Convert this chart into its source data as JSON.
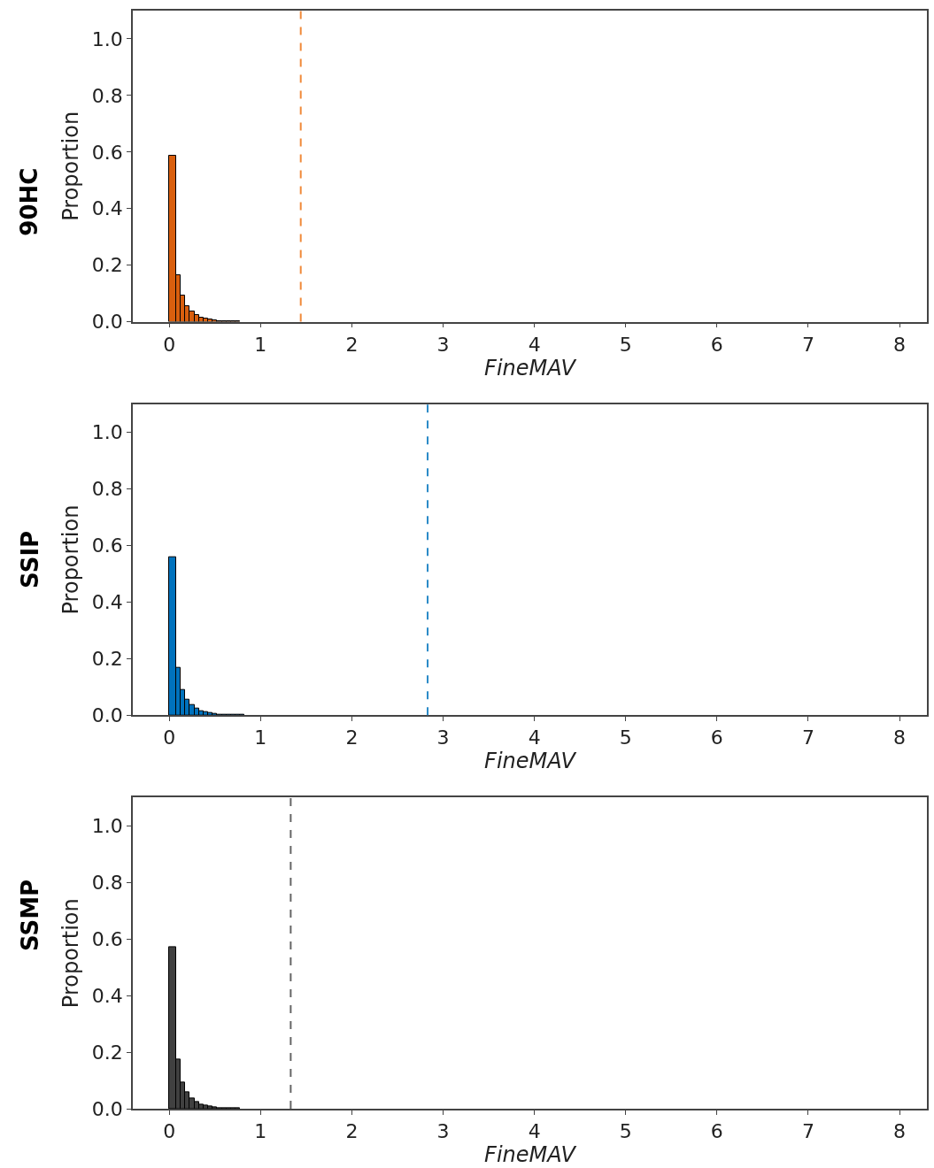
{
  "chart_data": [
    {
      "type": "histogram",
      "title": "90HC",
      "xlabel": "FineMAV",
      "ylabel": "Proportion",
      "color": "#d95f0e",
      "bins": [
        0,
        0.075,
        0.125,
        0.175,
        0.225,
        0.275,
        0.325,
        0.375,
        0.425,
        0.475,
        0.525,
        0.575,
        0.625,
        0.675,
        0.725,
        0.775
      ],
      "values": [
        0.586,
        0.164,
        0.092,
        0.056,
        0.036,
        0.024,
        0.015,
        0.01,
        0.007,
        0.005,
        0.002,
        0.001,
        0.001,
        0.001,
        0.001
      ],
      "xlim": [
        -0.4,
        8.3
      ],
      "ylim": [
        0,
        1.1
      ],
      "xticks": [
        0,
        1,
        2,
        3,
        4,
        5,
        6,
        7,
        8
      ],
      "yticks": [
        {
          "value": 0,
          "label": "0.0"
        },
        {
          "value": 0.2,
          "label": "0.2"
        },
        {
          "value": 0.4,
          "label": "0.4"
        },
        {
          "value": 0.6,
          "label": "0.6"
        },
        {
          "value": 0.8,
          "label": "0.8"
        },
        {
          "value": 1.0,
          "label": "1.0"
        }
      ],
      "ref_lines": [
        {
          "axis": "x",
          "value": 1.44,
          "label": null,
          "color": "#f08a3a",
          "line_style": "dashed"
        }
      ]
    },
    {
      "type": "histogram",
      "title": "SSIP",
      "xlabel": "FineMAV",
      "ylabel": "Proportion",
      "color": "#0072bd",
      "bins": [
        0,
        0.075,
        0.125,
        0.175,
        0.225,
        0.275,
        0.325,
        0.375,
        0.425,
        0.475,
        0.525,
        0.575,
        0.625,
        0.675,
        0.725,
        0.775,
        0.825
      ],
      "values": [
        0.56,
        0.167,
        0.091,
        0.056,
        0.035,
        0.024,
        0.015,
        0.01,
        0.007,
        0.005,
        0.002,
        0.001,
        0.001,
        0.001,
        0.001,
        0.001
      ],
      "xlim": [
        -0.4,
        8.3
      ],
      "ylim": [
        0,
        1.1
      ],
      "xticks": [
        0,
        1,
        2,
        3,
        4,
        5,
        6,
        7,
        8
      ],
      "yticks": [
        {
          "value": 0,
          "label": "0.0"
        },
        {
          "value": 0.2,
          "label": "0.2"
        },
        {
          "value": 0.4,
          "label": "0.4"
        },
        {
          "value": 0.6,
          "label": "0.6"
        },
        {
          "value": 0.8,
          "label": "0.8"
        },
        {
          "value": 1.0,
          "label": "1.0"
        }
      ],
      "ref_lines": [
        {
          "axis": "x",
          "value": 2.83,
          "label": null,
          "color": "#2a8ac8",
          "line_style": "dashed"
        }
      ]
    },
    {
      "type": "histogram",
      "title": "SSMP",
      "xlabel": "FineMAV",
      "ylabel": "Proportion",
      "color": "#404040",
      "bins": [
        0,
        0.075,
        0.125,
        0.175,
        0.225,
        0.275,
        0.325,
        0.375,
        0.425,
        0.475,
        0.525,
        0.575,
        0.625,
        0.675,
        0.725,
        0.775
      ],
      "values": [
        0.572,
        0.173,
        0.092,
        0.057,
        0.036,
        0.025,
        0.016,
        0.01,
        0.007,
        0.005,
        0.002,
        0.001,
        0.001,
        0.001,
        0.001
      ],
      "xlim": [
        -0.4,
        8.3
      ],
      "ylim": [
        0,
        1.1
      ],
      "xticks": [
        0,
        1,
        2,
        3,
        4,
        5,
        6,
        7,
        8
      ],
      "yticks": [
        {
          "value": 0,
          "label": "0.0"
        },
        {
          "value": 0.2,
          "label": "0.2"
        },
        {
          "value": 0.4,
          "label": "0.4"
        },
        {
          "value": 0.6,
          "label": "0.6"
        },
        {
          "value": 0.8,
          "label": "0.8"
        },
        {
          "value": 1.0,
          "label": "1.0"
        }
      ],
      "ref_lines": [
        {
          "axis": "x",
          "value": 1.33,
          "label": null,
          "color": "#666666",
          "line_style": "dashed"
        }
      ]
    }
  ]
}
